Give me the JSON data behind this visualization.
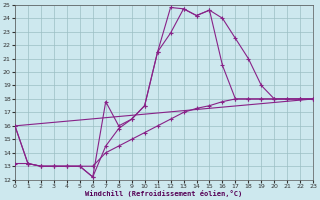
{
  "xlabel": "Windchill (Refroidissement éolien,°C)",
  "xlim": [
    0,
    23
  ],
  "ylim": [
    12,
    25
  ],
  "xticks": [
    0,
    1,
    2,
    3,
    4,
    5,
    6,
    7,
    8,
    9,
    10,
    11,
    12,
    13,
    14,
    15,
    16,
    17,
    18,
    19,
    20,
    21,
    22,
    23
  ],
  "yticks": [
    12,
    13,
    14,
    15,
    16,
    17,
    18,
    19,
    20,
    21,
    22,
    23,
    24,
    25
  ],
  "bg_color": "#cde8ee",
  "line_color": "#882288",
  "grid_color": "#9bbfc4",
  "line1_x": [
    0,
    1,
    2,
    3,
    4,
    5,
    6,
    7,
    8,
    9,
    10,
    11,
    12,
    13,
    14,
    15,
    16,
    17,
    18,
    19,
    20,
    21,
    22,
    23
  ],
  "line1_y": [
    16,
    13.2,
    13,
    13,
    13,
    13,
    12.2,
    14.5,
    15.8,
    16.5,
    17.5,
    21.5,
    24.8,
    24.7,
    24.2,
    24.6,
    24.0,
    22.5,
    21.0,
    19.0,
    18.0,
    18.0,
    18.0,
    18.0
  ],
  "line2_x": [
    0,
    1,
    2,
    3,
    4,
    5,
    6,
    7,
    8,
    9,
    10,
    11,
    12,
    13,
    14,
    15,
    16,
    17,
    18,
    19,
    20,
    22,
    23
  ],
  "line2_y": [
    16,
    13.2,
    13,
    13,
    13,
    13,
    12.2,
    17.8,
    16.0,
    16.5,
    17.5,
    21.5,
    22.9,
    24.7,
    24.2,
    24.6,
    20.5,
    18.0,
    18.0,
    18.0,
    18.0,
    18.0,
    18.0
  ],
  "line3_x": [
    0,
    1,
    2,
    3,
    4,
    5,
    6,
    7,
    8,
    9,
    10,
    11,
    12,
    13,
    14,
    15,
    16,
    17,
    18,
    19,
    20,
    21,
    22,
    23
  ],
  "line3_y": [
    13.2,
    13.2,
    13.0,
    13.0,
    13.0,
    13.0,
    13.0,
    14.0,
    14.5,
    15.0,
    15.5,
    16.0,
    16.5,
    17.0,
    17.3,
    17.5,
    17.8,
    18.0,
    18.0,
    18.0,
    18.0,
    18.0,
    18.0,
    18.0
  ],
  "line4_x": [
    0,
    23
  ],
  "line4_y": [
    16,
    18.0
  ]
}
